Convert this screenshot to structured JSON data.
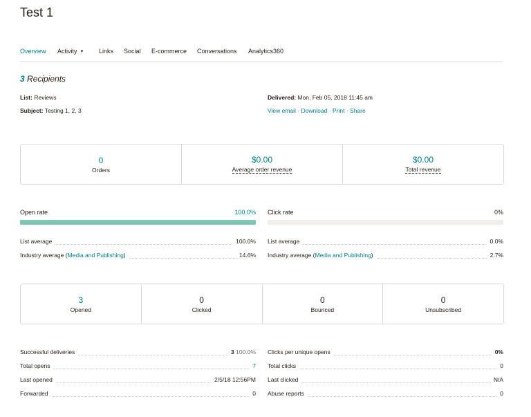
{
  "page": {
    "title": "Test 1"
  },
  "tabs": [
    "Overview",
    "Activity",
    "Links",
    "Social",
    "E-commerce",
    "Conversations",
    "Analytics360"
  ],
  "recipients": {
    "count": "3",
    "label": "Recipients"
  },
  "meta": {
    "list_label": "List:",
    "list_value": "Reviews",
    "subject_label": "Subject:",
    "subject_value": "Testing 1, 2, 3",
    "delivered_label": "Delivered:",
    "delivered_value": "Mon, Feb 05, 2018 11:45 am",
    "actions": [
      "View email",
      "Download",
      "Print",
      "Share"
    ],
    "separator": "·"
  },
  "ecommerce": [
    {
      "value": "0",
      "label": "Orders"
    },
    {
      "value": "$0.00",
      "label": "Average order revenue"
    },
    {
      "value": "$0.00",
      "label": "Total revenue"
    }
  ],
  "open_rate": {
    "label": "Open rate",
    "value": "100.0%",
    "fill_fraction": 1.0,
    "list_avg_label": "List average",
    "list_avg_value": "100.0%",
    "industry_prefix": "Industry average (",
    "industry_link": "Media and Publishing",
    "industry_suffix": ")",
    "industry_value": "14.6%"
  },
  "click_rate": {
    "label": "Click rate",
    "value": "0%",
    "fill_fraction": 0.0,
    "list_avg_label": "List average",
    "list_avg_value": "0.0%",
    "industry_prefix": "Industry average (",
    "industry_link": "Media and Publishing",
    "industry_suffix": ")",
    "industry_value": "2.7%"
  },
  "stats": [
    {
      "value": "3",
      "label": "Opened"
    },
    {
      "value": "0",
      "label": "Clicked"
    },
    {
      "value": "0",
      "label": "Bounced"
    },
    {
      "value": "0",
      "label": "Unsubscribed"
    }
  ],
  "details_left": [
    {
      "label": "Successful deliveries",
      "value": "3",
      "extra": "100.0%"
    },
    {
      "label": "Total opens",
      "value": "7"
    },
    {
      "label": "Last opened",
      "value": "2/5/18 12:56PM"
    },
    {
      "label": "Forwarded",
      "value": "0"
    }
  ],
  "details_right": [
    {
      "label": "Clicks per unique opens",
      "value": "0%"
    },
    {
      "label": "Total clicks",
      "value": "0"
    },
    {
      "label": "Last clicked",
      "value": "N/A"
    },
    {
      "label": "Abuse reports",
      "value": "0"
    }
  ],
  "colors": {
    "accent": "#007c89",
    "bar_fill": "#7ec7b4",
    "bar_track": "#efeeea",
    "text": "#241c15"
  }
}
